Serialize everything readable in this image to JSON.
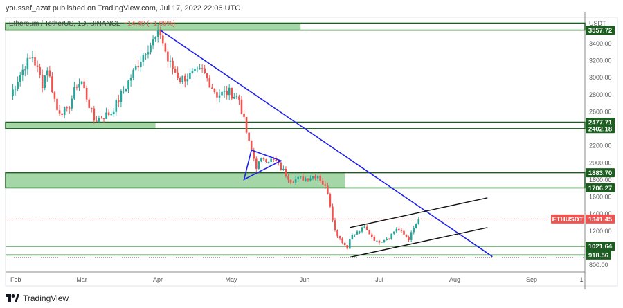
{
  "header": {
    "published": "youssef_azat published on TradingView.com, Jul 17, 2022 22:06 UTC"
  },
  "legend": {
    "symbol": "Ethereum / TetherUS, 1D, BINANCE",
    "change": "−14.40 (−1.06%)"
  },
  "footer": {
    "brand": "TradingView"
  },
  "colors": {
    "up": "#26a69a",
    "down": "#ef5350",
    "zone": "#a5d6a7",
    "zone_line": "#1b5e20",
    "trend": "#1e22e8",
    "channel": "#111111"
  },
  "chart_data": {
    "type": "candlestick",
    "symbol": "ETHUSDT",
    "currency": "USDT",
    "ylim": [
      760,
      3640
    ],
    "y_ticks": [
      800,
      1200,
      1400,
      1600,
      1800,
      2000,
      2200,
      2600,
      2800,
      3000,
      3200,
      3400
    ],
    "x_ticks": [
      "Feb",
      "Mar",
      "Apr",
      "May",
      "Jun",
      "Jul",
      "Aug",
      "Sep",
      "1"
    ],
    "x_range": [
      "2022-01-29",
      "2022-10-01"
    ],
    "close_keypoints": [
      [
        "2022-02-01",
        2790
      ],
      [
        "2022-02-04",
        2980
      ],
      [
        "2022-02-07",
        3150
      ],
      [
        "2022-02-10",
        3250
      ],
      [
        "2022-02-14",
        2930
      ],
      [
        "2022-02-16",
        3120
      ],
      [
        "2022-02-20",
        2620
      ],
      [
        "2022-02-24",
        2600
      ],
      [
        "2022-02-28",
        2920
      ],
      [
        "2022-03-02",
        2950
      ],
      [
        "2022-03-07",
        2500
      ],
      [
        "2022-03-14",
        2590
      ],
      [
        "2022-03-20",
        2900
      ],
      [
        "2022-03-28",
        3330
      ],
      [
        "2022-04-03",
        3520
      ],
      [
        "2022-04-06",
        3200
      ],
      [
        "2022-04-11",
        2980
      ],
      [
        "2022-04-20",
        3080
      ],
      [
        "2022-04-26",
        2800
      ],
      [
        "2022-05-01",
        2830
      ],
      [
        "2022-05-05",
        2750
      ],
      [
        "2022-05-09",
        2230
      ],
      [
        "2022-05-12",
        1960
      ],
      [
        "2022-05-15",
        2060
      ],
      [
        "2022-05-20",
        2010
      ],
      [
        "2022-05-26",
        1800
      ],
      [
        "2022-06-01",
        1820
      ],
      [
        "2022-06-06",
        1860
      ],
      [
        "2022-06-10",
        1660
      ],
      [
        "2022-06-13",
        1200
      ],
      [
        "2022-06-18",
        995
      ],
      [
        "2022-06-19",
        1125
      ],
      [
        "2022-06-25",
        1240
      ],
      [
        "2022-06-30",
        1070
      ],
      [
        "2022-07-05",
        1130
      ],
      [
        "2022-07-08",
        1230
      ],
      [
        "2022-07-13",
        1110
      ],
      [
        "2022-07-17",
        1341.45
      ]
    ],
    "last_price": {
      "label": "ETHUSDT",
      "value": "1341.45"
    },
    "top_price_label": "3557.72",
    "levels": [
      {
        "label": "3557.72",
        "price": 3557.72
      },
      {
        "label": "2477.71",
        "price": 2477.71
      },
      {
        "label": "2402.18",
        "price": 2402.18
      },
      {
        "label": "1883.70",
        "price": 1883.7
      },
      {
        "label": "1706.27",
        "price": 1706.27
      },
      {
        "label": "1021.64",
        "price": 1021.64
      },
      {
        "label": "918.56",
        "price": 918.56
      }
    ],
    "zones": [
      {
        "top": 3640,
        "bottom": 3557.72,
        "fill_end": "2022-05-30"
      },
      {
        "top": 2477.71,
        "bottom": 2402.18,
        "fill_end": "2022-04-01"
      },
      {
        "top": 1883.7,
        "bottom": 1706.27,
        "fill_end": "2022-06-17"
      }
    ],
    "trendline": [
      [
        "2022-04-03",
        3557
      ],
      [
        "2022-08-16",
        900
      ]
    ],
    "triangle": [
      [
        "2022-05-10",
        2150
      ],
      [
        "2022-05-22",
        2025
      ],
      [
        "2022-05-07",
        1805
      ]
    ],
    "channel": [
      [
        [
          "2022-06-19",
          1240
        ],
        [
          "2022-08-14",
          1590
        ]
      ],
      [
        [
          "2022-06-19",
          893
        ],
        [
          "2022-08-14",
          1240
        ]
      ]
    ]
  }
}
